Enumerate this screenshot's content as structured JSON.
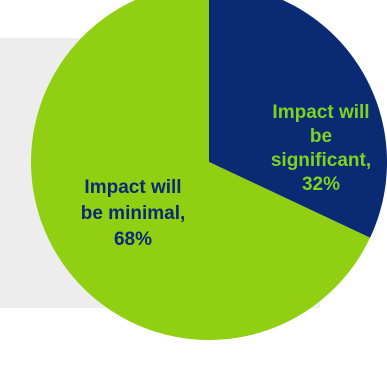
{
  "chart_data": {
    "type": "pie",
    "slices": [
      {
        "label_lines": [
          "Impact will",
          "be",
          "significant,",
          "32%"
        ],
        "value": 32,
        "color": "#0a2a73",
        "label_color": "#7ed321"
      },
      {
        "label_lines": [
          "Impact will",
          "be minimal,",
          "68%"
        ],
        "value": 68,
        "color": "#91cf12",
        "label_color": "#0a2a73"
      }
    ],
    "start_angle_deg": 0,
    "direction": "clockwise",
    "background_panel_color": "#ededed"
  }
}
